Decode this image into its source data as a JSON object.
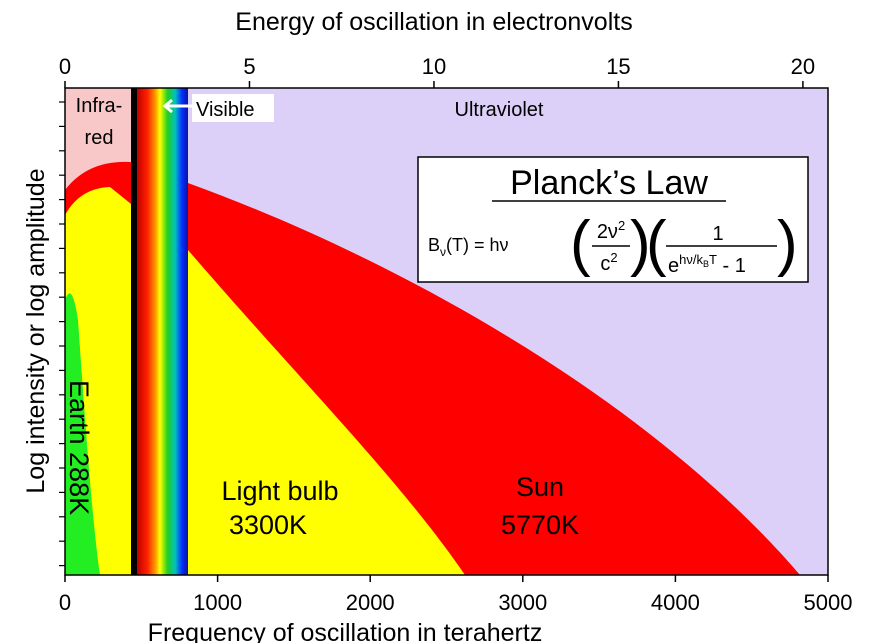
{
  "chart_data": {
    "type": "spectrum",
    "xlabel": "Frequency of oscillation in terahertz",
    "x2label": "Energy of oscillation in electronvolts",
    "ylabel": "Log intensity or log amplitude",
    "xlim": [
      0,
      5000
    ],
    "xticks": [
      0,
      1000,
      2000,
      3000,
      4000,
      5000
    ],
    "x2lim": [
      0,
      20.68
    ],
    "x2ticks": [
      0,
      5,
      10,
      15,
      20
    ],
    "regions": {
      "infrared": "Infra-",
      "infrared2": "red",
      "visible": "Visible",
      "ultraviolet": "Ultraviolet"
    },
    "curves": {
      "earth": "Earth 288K",
      "bulb": "Light bulb",
      "bulb_t": "3300K",
      "sun": "Sun",
      "sun_t": "5770K"
    },
    "formula": {
      "title": "Planck’s Law",
      "lhs": "B",
      "lhs_sub": "ν",
      "lhs_rest": "(T) =  hν",
      "num1": "2ν",
      "num1_sup": "2",
      "den1": "c",
      "den1_sup": "2",
      "num2": "1",
      "den2": "e",
      "den2_sup": "hν/k",
      "den2_sup_sub": "B",
      "den2_sup_rest": "T",
      "den2_rest": " - 1"
    }
  }
}
